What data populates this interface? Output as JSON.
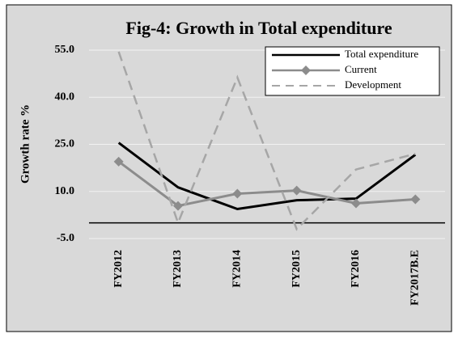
{
  "chart_data": {
    "type": "line",
    "title": "Fig-4: Growth in Total expenditure",
    "y_label": "Growth rate %",
    "categories": [
      "FY2012",
      "FY2013",
      "FY2014",
      "FY2015",
      "FY2016",
      "FY2017B.E"
    ],
    "series": [
      {
        "name": "Total expenditure",
        "color": "#000000",
        "style": "solid",
        "marker": "none",
        "values": [
          25.5,
          11.3,
          4.4,
          7.2,
          7.7,
          21.7
        ]
      },
      {
        "name": "Current",
        "color": "#8c8c8c",
        "style": "solid",
        "marker": "diamond",
        "values": [
          19.5,
          5.4,
          9.3,
          10.3,
          6.2,
          7.5
        ]
      },
      {
        "name": "Development",
        "color": "#a6a6a6",
        "style": "dashed",
        "marker": "none",
        "values": [
          54.5,
          0,
          46.3,
          -2,
          17,
          22
        ]
      }
    ],
    "ylim": [
      -5,
      55
    ],
    "yticks": [
      {
        "value": -5,
        "label": "-5.0"
      },
      {
        "value": 10,
        "label": "10.0"
      },
      {
        "value": 25,
        "label": "25.0"
      },
      {
        "value": 40,
        "label": "40.0"
      },
      {
        "value": 55,
        "label": "55.0"
      }
    ],
    "grid": true,
    "legend": "top-right"
  }
}
